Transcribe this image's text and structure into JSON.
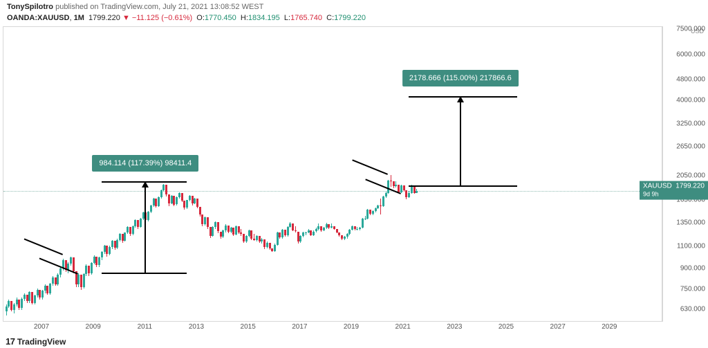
{
  "header": {
    "author": "TonySpilotro",
    "pub_text": "published on",
    "site": "TradingView.com",
    "timestamp": "July 21, 2021 13:08:52 WEST"
  },
  "ohlc": {
    "symbol": "OANDA:XAUUSD",
    "interval": "1M",
    "last": "1799.220",
    "change": "−11.125 (−0.61%)",
    "o_label": "O:",
    "o": "1770.450",
    "h_label": "H:",
    "h": "1834.195",
    "l_label": "L:",
    "l": "1765.740",
    "c_label": "C:",
    "c": "1799.220"
  },
  "y_axis": {
    "unit": "USD",
    "scale": "log",
    "range_min": 570,
    "range_max": 7700,
    "ticks": [
      "7500.000",
      "6000.000",
      "4800.000",
      "4000.000",
      "3250.000",
      "2650.000",
      "2050.000",
      "1650.000",
      "1350.000",
      "1100.000",
      "900.000",
      "750.000",
      "630.000"
    ],
    "tick_values": [
      7500,
      6000,
      4800,
      4000,
      3250,
      2650,
      2050,
      1650,
      1350,
      1100,
      900,
      750,
      630
    ]
  },
  "price_tag": {
    "sym": "XAUUSD",
    "price": "1799.220",
    "countdown": "9d 9h",
    "value": 1799.22
  },
  "x_axis": {
    "start_year": 2005.5,
    "end_year": 2031,
    "ticks": [
      "2007",
      "2009",
      "2011",
      "2013",
      "2015",
      "2017",
      "2019",
      "2021",
      "2023",
      "2025",
      "2027",
      "2029"
    ]
  },
  "annotations": {
    "box1": {
      "text": "984.114 (117.39%) 98411.4",
      "x_year": 2011.0,
      "y_value": 2300
    },
    "box2": {
      "text": "2178.666 (115.00%) 217866.6",
      "x_year": 2023.2,
      "y_value": 4900
    },
    "arrow1": {
      "x_year": 2011.0,
      "top_value": 1950,
      "bottom_value": 870
    },
    "arrow2": {
      "x_year": 2023.2,
      "top_value": 4150,
      "bottom_value": 1880
    },
    "bracket1_bottom": {
      "x_start": 2009.3,
      "x_end": 2012.6,
      "y_value": 870
    },
    "bracket1_top": {
      "x_start": 2009.3,
      "x_end": 2012.6,
      "y_value": 1950
    },
    "bracket2_bottom": {
      "x_start": 2021.2,
      "x_end": 2025.4,
      "y_value": 1880
    },
    "bracket2_top": {
      "x_start": 2021.2,
      "x_end": 2025.4,
      "y_value": 4150
    },
    "flag1_a": {
      "x_year": 2007.8,
      "y_value": 1030,
      "len": 60,
      "rot": 112
    },
    "flag1_b": {
      "x_year": 2008.4,
      "y_value": 870,
      "len": 60,
      "rot": 112
    },
    "flag2_a": {
      "x_year": 2020.4,
      "y_value": 2100,
      "len": 55,
      "rot": 112
    },
    "flag2_b": {
      "x_year": 2020.9,
      "y_value": 1770,
      "len": 55,
      "rot": 112
    }
  },
  "style": {
    "up_color": "#2aa89a",
    "down_color": "#d6283c",
    "box_bg": "#3e8d80",
    "grid_color": "#d7d7d7",
    "bg": "#ffffff",
    "dotted_color": "#8fbbb2"
  },
  "candles": [
    [
      2005.6,
      620,
      660,
      600,
      650
    ],
    [
      2005.7,
      650,
      690,
      640,
      680
    ],
    [
      2005.8,
      680,
      660,
      620,
      630
    ],
    [
      2005.9,
      630,
      670,
      610,
      660
    ],
    [
      2006.0,
      660,
      700,
      650,
      690
    ],
    [
      2006.1,
      690,
      660,
      630,
      640
    ],
    [
      2006.2,
      640,
      700,
      630,
      695
    ],
    [
      2006.3,
      695,
      730,
      680,
      720
    ],
    [
      2006.4,
      720,
      700,
      670,
      680
    ],
    [
      2006.5,
      680,
      740,
      670,
      735
    ],
    [
      2006.6,
      735,
      700,
      660,
      670
    ],
    [
      2006.7,
      670,
      720,
      660,
      715
    ],
    [
      2006.8,
      715,
      760,
      700,
      750
    ],
    [
      2006.9,
      750,
      720,
      690,
      700
    ],
    [
      2007.0,
      700,
      750,
      690,
      745
    ],
    [
      2007.1,
      745,
      790,
      730,
      780
    ],
    [
      2007.2,
      780,
      760,
      720,
      730
    ],
    [
      2007.3,
      730,
      800,
      720,
      795
    ],
    [
      2007.4,
      795,
      850,
      780,
      840
    ],
    [
      2007.5,
      840,
      820,
      780,
      790
    ],
    [
      2007.6,
      790,
      870,
      780,
      860
    ],
    [
      2007.7,
      860,
      920,
      840,
      910
    ],
    [
      2007.8,
      910,
      990,
      890,
      975
    ],
    [
      2007.9,
      975,
      940,
      880,
      895
    ],
    [
      2008.0,
      895,
      960,
      870,
      950
    ],
    [
      2008.1,
      950,
      1010,
      930,
      1000
    ],
    [
      2008.2,
      1000,
      940,
      870,
      885
    ],
    [
      2008.3,
      885,
      830,
      770,
      790
    ],
    [
      2008.4,
      790,
      870,
      770,
      860
    ],
    [
      2008.5,
      860,
      820,
      750,
      770
    ],
    [
      2008.6,
      770,
      870,
      760,
      865
    ],
    [
      2008.7,
      865,
      940,
      850,
      930
    ],
    [
      2008.8,
      930,
      900,
      850,
      870
    ],
    [
      2008.9,
      870,
      960,
      860,
      955
    ],
    [
      2009.0,
      955,
      1020,
      940,
      1010
    ],
    [
      2009.1,
      1010,
      970,
      920,
      935
    ],
    [
      2009.2,
      935,
      1010,
      920,
      1000
    ],
    [
      2009.3,
      1000,
      1060,
      980,
      1050
    ],
    [
      2009.4,
      1050,
      1120,
      1030,
      1110
    ],
    [
      2009.5,
      1110,
      1070,
      1010,
      1030
    ],
    [
      2009.6,
      1030,
      1110,
      1020,
      1100
    ],
    [
      2009.7,
      1100,
      1170,
      1080,
      1160
    ],
    [
      2009.8,
      1160,
      1130,
      1070,
      1090
    ],
    [
      2009.9,
      1090,
      1180,
      1080,
      1170
    ],
    [
      2010.0,
      1170,
      1240,
      1150,
      1230
    ],
    [
      2010.1,
      1230,
      1190,
      1140,
      1160
    ],
    [
      2010.2,
      1160,
      1250,
      1150,
      1245
    ],
    [
      2010.3,
      1245,
      1320,
      1230,
      1310
    ],
    [
      2010.4,
      1310,
      1270,
      1210,
      1230
    ],
    [
      2010.5,
      1230,
      1330,
      1220,
      1320
    ],
    [
      2010.6,
      1320,
      1400,
      1300,
      1390
    ],
    [
      2010.7,
      1390,
      1350,
      1290,
      1310
    ],
    [
      2010.8,
      1310,
      1420,
      1300,
      1410
    ],
    [
      2010.9,
      1410,
      1500,
      1390,
      1490
    ],
    [
      2011.0,
      1490,
      1440,
      1370,
      1390
    ],
    [
      2011.1,
      1390,
      1510,
      1380,
      1500
    ],
    [
      2011.2,
      1500,
      1600,
      1480,
      1590
    ],
    [
      2011.3,
      1590,
      1700,
      1570,
      1690
    ],
    [
      2011.4,
      1690,
      1640,
      1560,
      1580
    ],
    [
      2011.5,
      1580,
      1720,
      1570,
      1710
    ],
    [
      2011.6,
      1710,
      1830,
      1690,
      1815
    ],
    [
      2011.7,
      1815,
      1920,
      1790,
      1900
    ],
    [
      2011.8,
      1900,
      1820,
      1720,
      1750
    ],
    [
      2011.9,
      1750,
      1680,
      1580,
      1610
    ],
    [
      2012.0,
      1610,
      1740,
      1600,
      1730
    ],
    [
      2012.1,
      1730,
      1660,
      1580,
      1600
    ],
    [
      2012.2,
      1600,
      1720,
      1590,
      1710
    ],
    [
      2012.3,
      1710,
      1780,
      1690,
      1770
    ],
    [
      2012.4,
      1770,
      1700,
      1630,
      1650
    ],
    [
      2012.5,
      1650,
      1580,
      1530,
      1555
    ],
    [
      2012.6,
      1555,
      1670,
      1540,
      1660
    ],
    [
      2012.7,
      1660,
      1740,
      1640,
      1725
    ],
    [
      2012.8,
      1725,
      1650,
      1590,
      1610
    ],
    [
      2012.9,
      1610,
      1700,
      1600,
      1690
    ],
    [
      2013.0,
      1690,
      1620,
      1550,
      1570
    ],
    [
      2013.1,
      1570,
      1500,
      1440,
      1460
    ],
    [
      2013.2,
      1460,
      1390,
      1320,
      1345
    ],
    [
      2013.3,
      1345,
      1440,
      1330,
      1430
    ],
    [
      2013.4,
      1430,
      1360,
      1290,
      1310
    ],
    [
      2013.5,
      1310,
      1250,
      1190,
      1210
    ],
    [
      2013.6,
      1210,
      1320,
      1200,
      1310
    ],
    [
      2013.7,
      1310,
      1380,
      1290,
      1370
    ],
    [
      2013.8,
      1370,
      1300,
      1240,
      1260
    ],
    [
      2013.9,
      1260,
      1210,
      1180,
      1200
    ],
    [
      2014.0,
      1200,
      1280,
      1190,
      1270
    ],
    [
      2014.1,
      1270,
      1340,
      1250,
      1330
    ],
    [
      2014.2,
      1330,
      1280,
      1240,
      1255
    ],
    [
      2014.3,
      1255,
      1310,
      1240,
      1300
    ],
    [
      2014.4,
      1300,
      1250,
      1210,
      1225
    ],
    [
      2014.5,
      1225,
      1330,
      1215,
      1320
    ],
    [
      2014.6,
      1320,
      1270,
      1230,
      1245
    ],
    [
      2014.7,
      1245,
      1290,
      1210,
      1230
    ],
    [
      2014.8,
      1230,
      1180,
      1140,
      1155
    ],
    [
      2014.9,
      1155,
      1220,
      1140,
      1210
    ],
    [
      2015.0,
      1210,
      1280,
      1195,
      1270
    ],
    [
      2015.1,
      1270,
      1210,
      1170,
      1185
    ],
    [
      2015.2,
      1185,
      1230,
      1160,
      1170
    ],
    [
      2015.3,
      1170,
      1220,
      1155,
      1210
    ],
    [
      2015.4,
      1210,
      1170,
      1140,
      1150
    ],
    [
      2015.5,
      1150,
      1190,
      1130,
      1175
    ],
    [
      2015.6,
      1175,
      1130,
      1080,
      1095
    ],
    [
      2015.7,
      1095,
      1150,
      1085,
      1140
    ],
    [
      2015.8,
      1140,
      1110,
      1070,
      1085
    ],
    [
      2015.9,
      1085,
      1070,
      1050,
      1060
    ],
    [
      2016.0,
      1060,
      1130,
      1050,
      1120
    ],
    [
      2016.1,
      1120,
      1260,
      1110,
      1250
    ],
    [
      2016.2,
      1250,
      1210,
      1180,
      1195
    ],
    [
      2016.3,
      1195,
      1290,
      1185,
      1280
    ],
    [
      2016.4,
      1280,
      1240,
      1200,
      1215
    ],
    [
      2016.5,
      1215,
      1320,
      1205,
      1315
    ],
    [
      2016.6,
      1315,
      1370,
      1300,
      1355
    ],
    [
      2016.7,
      1355,
      1310,
      1260,
      1275
    ],
    [
      2016.8,
      1275,
      1320,
      1250,
      1260
    ],
    [
      2016.9,
      1260,
      1190,
      1130,
      1150
    ],
    [
      2017.0,
      1150,
      1220,
      1140,
      1210
    ],
    [
      2017.1,
      1210,
      1260,
      1195,
      1250
    ],
    [
      2017.2,
      1250,
      1260,
      1220,
      1250
    ],
    [
      2017.3,
      1250,
      1290,
      1240,
      1270
    ],
    [
      2017.4,
      1270,
      1230,
      1210,
      1220
    ],
    [
      2017.5,
      1220,
      1270,
      1210,
      1260
    ],
    [
      2017.6,
      1260,
      1300,
      1245,
      1290
    ],
    [
      2017.7,
      1290,
      1350,
      1275,
      1320
    ],
    [
      2017.8,
      1320,
      1290,
      1260,
      1275
    ],
    [
      2017.9,
      1275,
      1310,
      1260,
      1300
    ],
    [
      2018.0,
      1300,
      1360,
      1290,
      1345
    ],
    [
      2018.1,
      1345,
      1320,
      1290,
      1305
    ],
    [
      2018.2,
      1305,
      1350,
      1295,
      1320
    ],
    [
      2018.3,
      1320,
      1300,
      1280,
      1290
    ],
    [
      2018.4,
      1290,
      1260,
      1240,
      1250
    ],
    [
      2018.5,
      1250,
      1230,
      1200,
      1215
    ],
    [
      2018.6,
      1215,
      1200,
      1170,
      1180
    ],
    [
      2018.7,
      1180,
      1210,
      1165,
      1200
    ],
    [
      2018.8,
      1200,
      1240,
      1185,
      1230
    ],
    [
      2018.9,
      1230,
      1290,
      1220,
      1280
    ],
    [
      2019.0,
      1280,
      1330,
      1270,
      1320
    ],
    [
      2019.1,
      1320,
      1300,
      1270,
      1285
    ],
    [
      2019.2,
      1285,
      1310,
      1270,
      1290
    ],
    [
      2019.3,
      1290,
      1310,
      1275,
      1300
    ],
    [
      2019.4,
      1300,
      1420,
      1295,
      1410
    ],
    [
      2019.5,
      1410,
      1450,
      1390,
      1415
    ],
    [
      2019.6,
      1415,
      1540,
      1400,
      1525
    ],
    [
      2019.7,
      1525,
      1490,
      1455,
      1470
    ],
    [
      2019.8,
      1470,
      1520,
      1455,
      1510
    ],
    [
      2019.9,
      1510,
      1560,
      1495,
      1550
    ],
    [
      2020.0,
      1550,
      1600,
      1535,
      1585
    ],
    [
      2020.1,
      1585,
      1690,
      1460,
      1580
    ],
    [
      2020.2,
      1580,
      1730,
      1570,
      1720
    ],
    [
      2020.3,
      1720,
      1790,
      1700,
      1770
    ],
    [
      2020.4,
      1770,
      1990,
      1760,
      1975
    ],
    [
      2020.5,
      1975,
      2075,
      1870,
      1965
    ],
    [
      2020.6,
      1965,
      1920,
      1850,
      1880
    ],
    [
      2020.7,
      1880,
      1960,
      1860,
      1900
    ],
    [
      2020.8,
      1900,
      1870,
      1770,
      1785
    ],
    [
      2020.9,
      1785,
      1900,
      1775,
      1895
    ],
    [
      2021.0,
      1895,
      1870,
      1790,
      1810
    ],
    [
      2021.1,
      1810,
      1760,
      1680,
      1710
    ],
    [
      2021.2,
      1710,
      1800,
      1700,
      1770
    ],
    [
      2021.3,
      1770,
      1910,
      1760,
      1895
    ],
    [
      2021.4,
      1895,
      1830,
      1760,
      1775
    ],
    [
      2021.5,
      1775,
      1835,
      1765,
      1799
    ]
  ],
  "footer": {
    "logo": "17",
    "brand": "TradingView"
  }
}
